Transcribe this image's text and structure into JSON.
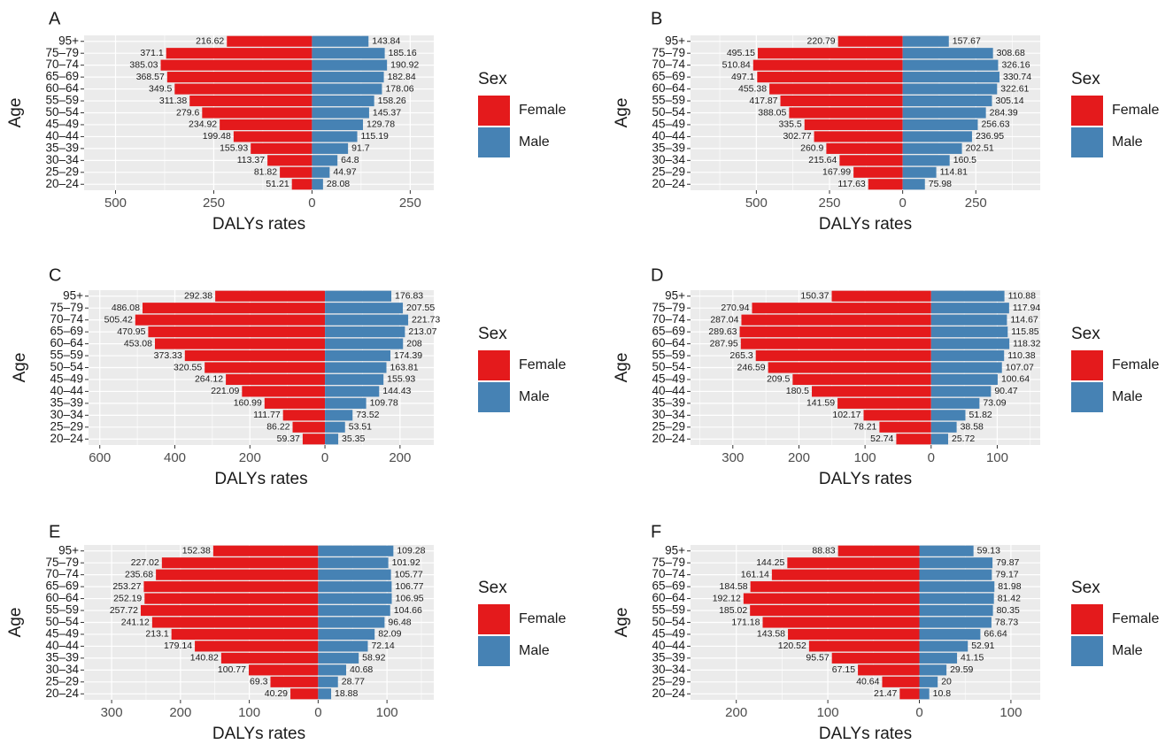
{
  "colors": {
    "female": "#e41a1c",
    "male": "#4682b4",
    "panel_bg": "#ebebeb",
    "grid": "#ffffff",
    "text": "#1a1a1a",
    "tick": "#4d4d4d"
  },
  "legend": {
    "title": "Sex",
    "items": [
      "Female",
      "Male"
    ]
  },
  "chart_data": [
    {
      "panel": "A",
      "type": "bar",
      "orientation": "horizontal-population-pyramid",
      "ylabel": "Age",
      "xlabel": "DALYs rates",
      "xlim": [
        -580,
        310
      ],
      "x_tick_values": [
        -500,
        -250,
        0,
        250
      ],
      "x_tick_labels": [
        "500",
        "250",
        "0",
        "250"
      ],
      "categories": [
        "20–24",
        "25–29",
        "30–34",
        "35–39",
        "40–44",
        "45–49",
        "50–54",
        "55–59",
        "60–64",
        "65–69",
        "70–74",
        "75–79",
        "95+"
      ],
      "female_labels": [
        "51.21",
        "81.82",
        "113.37",
        "155.93",
        "199.48",
        "234.92",
        "279.6",
        "311.38",
        "349.5",
        "368.57",
        "385.03",
        "371.1",
        "216.62"
      ],
      "male_labels": [
        "28.08",
        "44.97",
        "64.8",
        "91.7",
        "115.19",
        "129.78",
        "145.37",
        "158.26",
        "178.06",
        "182.84",
        "190.92",
        "185.16",
        "143.84"
      ],
      "series": [
        {
          "name": "Female",
          "values": [
            51.21,
            81.82,
            113.37,
            155.93,
            199.48,
            234.92,
            279.6,
            311.38,
            349.5,
            368.57,
            385.03,
            371.1,
            216.62
          ]
        },
        {
          "name": "Male",
          "values": [
            28.08,
            44.97,
            64.8,
            91.7,
            115.19,
            129.78,
            145.37,
            158.26,
            178.06,
            182.84,
            190.92,
            185.16,
            143.84
          ]
        }
      ]
    },
    {
      "panel": "B",
      "type": "bar",
      "orientation": "horizontal-population-pyramid",
      "ylabel": "Age",
      "xlabel": "DALYs rates",
      "xlim": [
        -725,
        470
      ],
      "x_tick_values": [
        -500,
        -250,
        0,
        250
      ],
      "x_tick_labels": [
        "500",
        "250",
        "0",
        "250"
      ],
      "categories": [
        "20–24",
        "25–29",
        "30–34",
        "35–39",
        "40–44",
        "45–49",
        "50–54",
        "55–59",
        "60–64",
        "65–69",
        "70–74",
        "75–79",
        "95+"
      ],
      "female_labels": [
        "117.63",
        "167.99",
        "215.64",
        "260.9",
        "302.77",
        "335.5",
        "388.05",
        "417.87",
        "455.38",
        "497.1",
        "510.84",
        "495.15",
        "220.79"
      ],
      "male_labels": [
        "75.98",
        "114.81",
        "160.5",
        "202.51",
        "236.95",
        "256.63",
        "284.39",
        "305.14",
        "322.61",
        "330.74",
        "326.16",
        "308.68",
        "157.67"
      ],
      "series": [
        {
          "name": "Female",
          "values": [
            117.63,
            167.99,
            215.64,
            260.9,
            302.77,
            335.5,
            388.05,
            417.87,
            455.38,
            497.1,
            510.84,
            495.15,
            220.79
          ]
        },
        {
          "name": "Male",
          "values": [
            75.98,
            114.81,
            160.5,
            202.51,
            236.95,
            256.63,
            284.39,
            305.14,
            322.61,
            330.74,
            326.16,
            308.68,
            157.67
          ]
        }
      ]
    },
    {
      "panel": "C",
      "type": "bar",
      "orientation": "horizontal-population-pyramid",
      "ylabel": "Age",
      "xlabel": "DALYs rates",
      "xlim": [
        -630,
        290
      ],
      "x_tick_values": [
        -600,
        -400,
        -200,
        0,
        200
      ],
      "x_tick_labels": [
        "600",
        "400",
        "200",
        "0",
        "200"
      ],
      "categories": [
        "20–24",
        "25–29",
        "30–34",
        "35–39",
        "40–44",
        "45–49",
        "50–54",
        "55–59",
        "60–64",
        "65–69",
        "70–74",
        "75–79",
        "95+"
      ],
      "female_labels": [
        "59.37",
        "86.22",
        "111.77",
        "160.99",
        "221.09",
        "264.12",
        "320.55",
        "373.33",
        "453.08",
        "470.95",
        "505.42",
        "486.08",
        "292.38"
      ],
      "male_labels": [
        "35.35",
        "53.51",
        "73.52",
        "109.78",
        "144.43",
        "155.93",
        "163.81",
        "174.39",
        "208",
        "213.07",
        "221.73",
        "207.55",
        "176.83"
      ],
      "series": [
        {
          "name": "Female",
          "values": [
            59.37,
            86.22,
            111.77,
            160.99,
            221.09,
            264.12,
            320.55,
            373.33,
            453.08,
            470.95,
            505.42,
            486.08,
            292.38
          ]
        },
        {
          "name": "Male",
          "values": [
            35.35,
            53.51,
            73.52,
            109.78,
            144.43,
            155.93,
            163.81,
            174.39,
            208,
            213.07,
            221.73,
            207.55,
            176.83
          ]
        }
      ]
    },
    {
      "panel": "D",
      "type": "bar",
      "orientation": "horizontal-population-pyramid",
      "ylabel": "Age",
      "xlabel": "DALYs rates",
      "xlim": [
        -364,
        165
      ],
      "x_tick_values": [
        -300,
        -200,
        -100,
        0,
        100
      ],
      "x_tick_labels": [
        "300",
        "200",
        "100",
        "0",
        "100"
      ],
      "categories": [
        "20–24",
        "25–29",
        "30–34",
        "35–39",
        "40–44",
        "45–49",
        "50–54",
        "55–59",
        "60–64",
        "65–69",
        "70–74",
        "75–79",
        "95+"
      ],
      "female_labels": [
        "52.74",
        "78.21",
        "102.17",
        "141.59",
        "180.5",
        "209.5",
        "246.59",
        "265.3",
        "287.95",
        "289.63",
        "287.04",
        "270.94",
        "150.37"
      ],
      "male_labels": [
        "25.72",
        "38.58",
        "51.82",
        "73.09",
        "90.47",
        "100.64",
        "107.07",
        "110.38",
        "118.32",
        "115.85",
        "114.67",
        "117.94",
        "110.88"
      ],
      "series": [
        {
          "name": "Female",
          "values": [
            52.74,
            78.21,
            102.17,
            141.59,
            180.5,
            209.5,
            246.59,
            265.3,
            287.95,
            289.63,
            287.04,
            270.94,
            150.37
          ]
        },
        {
          "name": "Male",
          "values": [
            25.72,
            38.58,
            51.82,
            73.09,
            90.47,
            100.64,
            107.07,
            110.38,
            118.32,
            115.85,
            114.67,
            117.94,
            110.88
          ]
        }
      ]
    },
    {
      "panel": "E",
      "type": "bar",
      "orientation": "horizontal-population-pyramid",
      "ylabel": "Age",
      "xlabel": "DALYs rates",
      "xlim": [
        -340,
        168
      ],
      "x_tick_values": [
        -300,
        -200,
        -100,
        0,
        100
      ],
      "x_tick_labels": [
        "300",
        "200",
        "100",
        "0",
        "100"
      ],
      "categories": [
        "20–24",
        "25–29",
        "30–34",
        "35–39",
        "40–44",
        "45–49",
        "50–54",
        "55–59",
        "60–64",
        "65–69",
        "70–74",
        "75–79",
        "95+"
      ],
      "female_labels": [
        "40.29",
        "69.3",
        "100.77",
        "140.82",
        "179.14",
        "213.1",
        "241.12",
        "257.72",
        "252.19",
        "253.27",
        "235.68",
        "227.02",
        "152.38"
      ],
      "male_labels": [
        "18.88",
        "28.77",
        "40.68",
        "58.92",
        "72.14",
        "82.09",
        "96.48",
        "104.66",
        "106.95",
        "106.77",
        "105.77",
        "101.92",
        "109.28"
      ],
      "series": [
        {
          "name": "Female",
          "values": [
            40.29,
            69.3,
            100.77,
            140.82,
            179.14,
            213.1,
            241.12,
            257.72,
            252.19,
            253.27,
            235.68,
            227.02,
            152.38
          ]
        },
        {
          "name": "Male",
          "values": [
            18.88,
            28.77,
            40.68,
            58.92,
            72.14,
            82.09,
            96.48,
            104.66,
            106.95,
            106.77,
            105.77,
            101.92,
            109.28
          ]
        }
      ]
    },
    {
      "panel": "F",
      "type": "bar",
      "orientation": "horizontal-population-pyramid",
      "ylabel": "Age",
      "xlabel": "DALYs rates",
      "xlim": [
        -250,
        132
      ],
      "x_tick_values": [
        -200,
        -100,
        0,
        100
      ],
      "x_tick_labels": [
        "200",
        "100",
        "0",
        "100"
      ],
      "categories": [
        "20–24",
        "25–29",
        "30–34",
        "35–39",
        "40–44",
        "45–49",
        "50–54",
        "55–59",
        "60–64",
        "65–69",
        "70–74",
        "75–79",
        "95+"
      ],
      "female_labels": [
        "21.47",
        "40.64",
        "67.15",
        "95.57",
        "120.52",
        "143.58",
        "171.18",
        "185.02",
        "192.12",
        "184.58",
        "161.14",
        "144.25",
        "88.83"
      ],
      "male_labels": [
        "10.8",
        "20",
        "29.59",
        "41.15",
        "52.91",
        "66.64",
        "78.73",
        "80.35",
        "81.42",
        "81.98",
        "79.17",
        "79.87",
        "59.13"
      ],
      "series": [
        {
          "name": "Female",
          "values": [
            21.47,
            40.64,
            67.15,
            95.57,
            120.52,
            143.58,
            171.18,
            185.02,
            192.12,
            184.58,
            161.14,
            144.25,
            88.83
          ]
        },
        {
          "name": "Male",
          "values": [
            10.8,
            20,
            29.59,
            41.15,
            52.91,
            66.64,
            78.73,
            80.35,
            81.42,
            81.98,
            79.17,
            79.87,
            59.13
          ]
        }
      ]
    }
  ]
}
